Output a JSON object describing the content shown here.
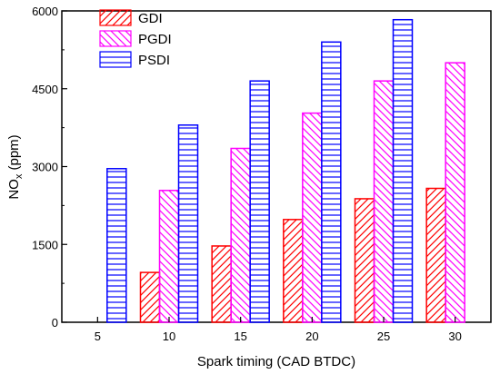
{
  "chart_data": {
    "type": "bar",
    "xlabel": "Spark timing (CAD BTDC)",
    "ylabel_main": "NO",
    "ylabel_sub": "x",
    "ylabel_unit": " (ppm)",
    "categories": [
      "5",
      "10",
      "15",
      "20",
      "25",
      "30"
    ],
    "ylim": [
      0,
      6000
    ],
    "yticks": [
      0,
      1500,
      3000,
      4500,
      6000
    ],
    "yticks_labels": [
      "0",
      "1500",
      "3000",
      "4500",
      "6000"
    ],
    "grid": false,
    "legend_position": "top-left",
    "series": [
      {
        "name": "GDI",
        "color": "#ff0000",
        "pattern": "diagonal-up",
        "values": [
          null,
          960,
          1470,
          1980,
          2380,
          2580
        ]
      },
      {
        "name": "PGDI",
        "color": "#ff00ff",
        "pattern": "diagonal-down",
        "values": [
          null,
          2540,
          3350,
          4030,
          4650,
          5000
        ]
      },
      {
        "name": "PSDI",
        "color": "#0000ff",
        "pattern": "horizontal",
        "values": [
          2960,
          3800,
          4650,
          5400,
          5830,
          null
        ]
      }
    ]
  }
}
